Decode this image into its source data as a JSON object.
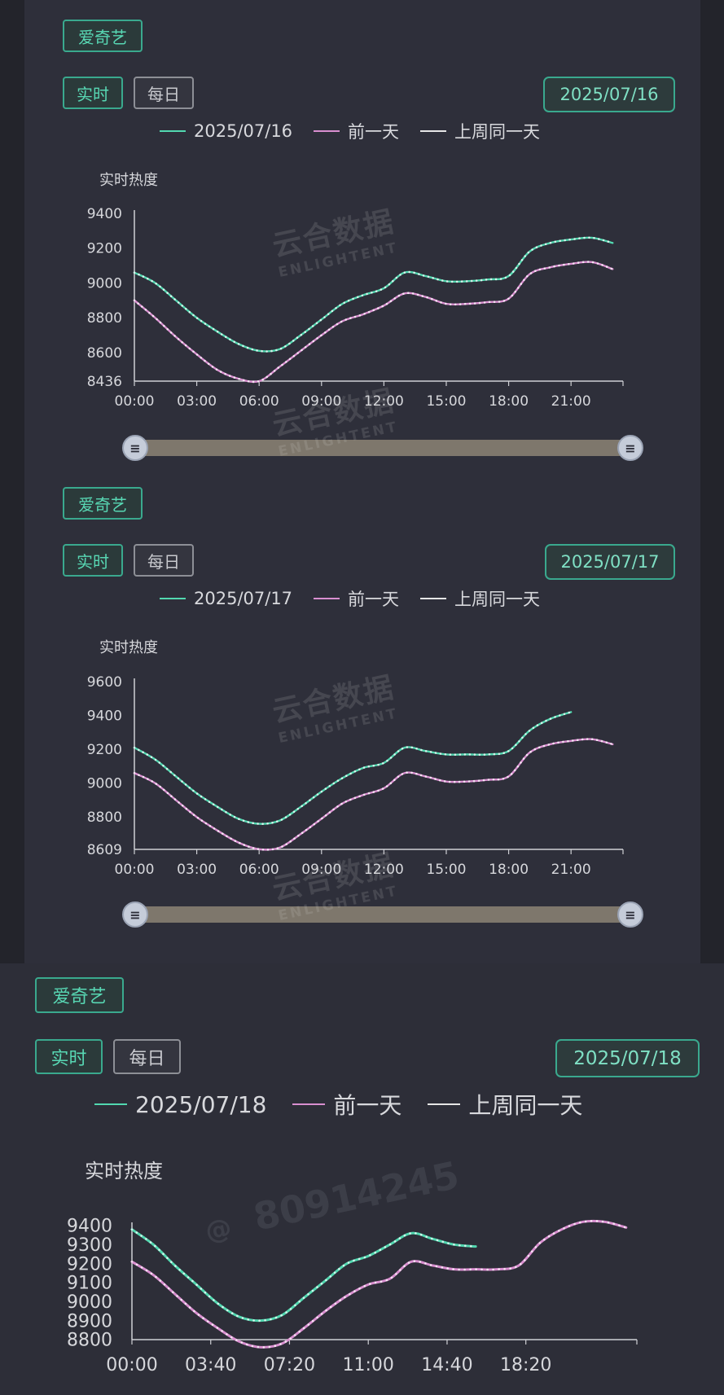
{
  "watermark": {
    "cn": "云合数据",
    "en": "ENLIGHTENT",
    "user_at": "@",
    "user_id": "80914245"
  },
  "colors": {
    "current": "#52d8b0",
    "prev_day": "#d98fd0",
    "last_week": "#e6e6e6",
    "accent": "#3aa98e"
  },
  "panels": [
    {
      "platform": "爱奇艺",
      "tab_realtime": "实时",
      "tab_daily": "每日",
      "date": "2025/07/16",
      "legend": [
        "2025/07/16",
        "前一天",
        "上周同一天"
      ],
      "ytitle": "实时热度",
      "yticks": [
        "9400",
        "9200",
        "9000",
        "8800",
        "8600",
        "8436"
      ],
      "xticks": [
        "00:00",
        "03:00",
        "06:00",
        "09:00",
        "12:00",
        "15:00",
        "18:00",
        "21:00"
      ],
      "slider_icon": "drag-handle-icon"
    },
    {
      "platform": "爱奇艺",
      "tab_realtime": "实时",
      "tab_daily": "每日",
      "date": "2025/07/17",
      "legend": [
        "2025/07/17",
        "前一天",
        "上周同一天"
      ],
      "ytitle": "实时热度",
      "yticks": [
        "9600",
        "9400",
        "9200",
        "9000",
        "8800",
        "8609"
      ],
      "xticks": [
        "00:00",
        "03:00",
        "06:00",
        "09:00",
        "12:00",
        "15:00",
        "18:00",
        "21:00"
      ],
      "slider_icon": "drag-handle-icon"
    },
    {
      "platform": "爱奇艺",
      "tab_realtime": "实时",
      "tab_daily": "每日",
      "date": "2025/07/18",
      "legend": [
        "2025/07/18",
        "前一天",
        "上周同一天"
      ],
      "ytitle": "实时热度",
      "yticks": [
        "9400",
        "9300",
        "9200",
        "9100",
        "9000",
        "8900",
        "8800"
      ],
      "xticks": [
        "00:00",
        "03:40",
        "07:20",
        "11:00",
        "14:40",
        "18:20"
      ]
    }
  ],
  "chart_data": [
    {
      "type": "line",
      "ylabel": "实时热度",
      "ylim": [
        8436,
        9400
      ],
      "x_hours": [
        0,
        1,
        2,
        3,
        4,
        5,
        6,
        7,
        8,
        9,
        10,
        11,
        12,
        13,
        14,
        15,
        16,
        17,
        18,
        19,
        20,
        21,
        22,
        23
      ],
      "series": [
        {
          "name": "2025/07/16",
          "color": "#52d8b0",
          "values": [
            9060,
            9000,
            8900,
            8800,
            8720,
            8650,
            8610,
            8620,
            8700,
            8790,
            8880,
            8930,
            8970,
            9060,
            9040,
            9010,
            9010,
            9020,
            9040,
            9180,
            9230,
            9250,
            9260,
            9230
          ]
        },
        {
          "name": "前一天",
          "color": "#d98fd0",
          "values": [
            8900,
            8800,
            8690,
            8590,
            8500,
            8450,
            8436,
            8520,
            8610,
            8700,
            8780,
            8820,
            8870,
            8940,
            8920,
            8880,
            8880,
            8890,
            8910,
            9050,
            9090,
            9110,
            9120,
            9080
          ]
        }
      ]
    },
    {
      "type": "line",
      "ylabel": "实时热度",
      "ylim": [
        8609,
        9600
      ],
      "x_hours": [
        0,
        1,
        2,
        3,
        4,
        5,
        6,
        7,
        8,
        9,
        10,
        11,
        12,
        13,
        14,
        15,
        16,
        17,
        18,
        19,
        20,
        21,
        22,
        23
      ],
      "series": [
        {
          "name": "2025/07/17",
          "color": "#52d8b0",
          "values": [
            9210,
            9140,
            9040,
            8940,
            8860,
            8790,
            8760,
            8780,
            8860,
            8950,
            9030,
            9090,
            9120,
            9210,
            9190,
            9170,
            9170,
            9170,
            9190,
            9310,
            9380,
            9420,
            null,
            null
          ]
        },
        {
          "name": "前一天",
          "color": "#d98fd0",
          "values": [
            9060,
            9000,
            8900,
            8800,
            8720,
            8650,
            8610,
            8620,
            8700,
            8790,
            8880,
            8930,
            8970,
            9060,
            9040,
            9010,
            9010,
            9020,
            9040,
            9180,
            9230,
            9250,
            9260,
            9230
          ]
        }
      ]
    },
    {
      "type": "line",
      "ylabel": "实时热度",
      "ylim": [
        8800,
        9400
      ],
      "x_hours": [
        0,
        1,
        2,
        3,
        4,
        5,
        6,
        7,
        8,
        9,
        10,
        11,
        12,
        13,
        14,
        15,
        16,
        17,
        18,
        19,
        20,
        21,
        22,
        23
      ],
      "series": [
        {
          "name": "2025/07/18",
          "color": "#52d8b0",
          "values": [
            9380,
            9300,
            9190,
            9090,
            8990,
            8920,
            8900,
            8930,
            9020,
            9110,
            9200,
            9240,
            9300,
            9360,
            9330,
            9300,
            9290,
            null,
            null,
            null,
            null,
            null,
            null,
            null
          ]
        },
        {
          "name": "前一天",
          "color": "#d98fd0",
          "values": [
            9210,
            9140,
            9040,
            8940,
            8860,
            8790,
            8760,
            8780,
            8860,
            8950,
            9030,
            9090,
            9120,
            9210,
            9190,
            9170,
            9170,
            9170,
            9190,
            9310,
            9380,
            9420,
            9420,
            9390
          ]
        }
      ]
    }
  ]
}
